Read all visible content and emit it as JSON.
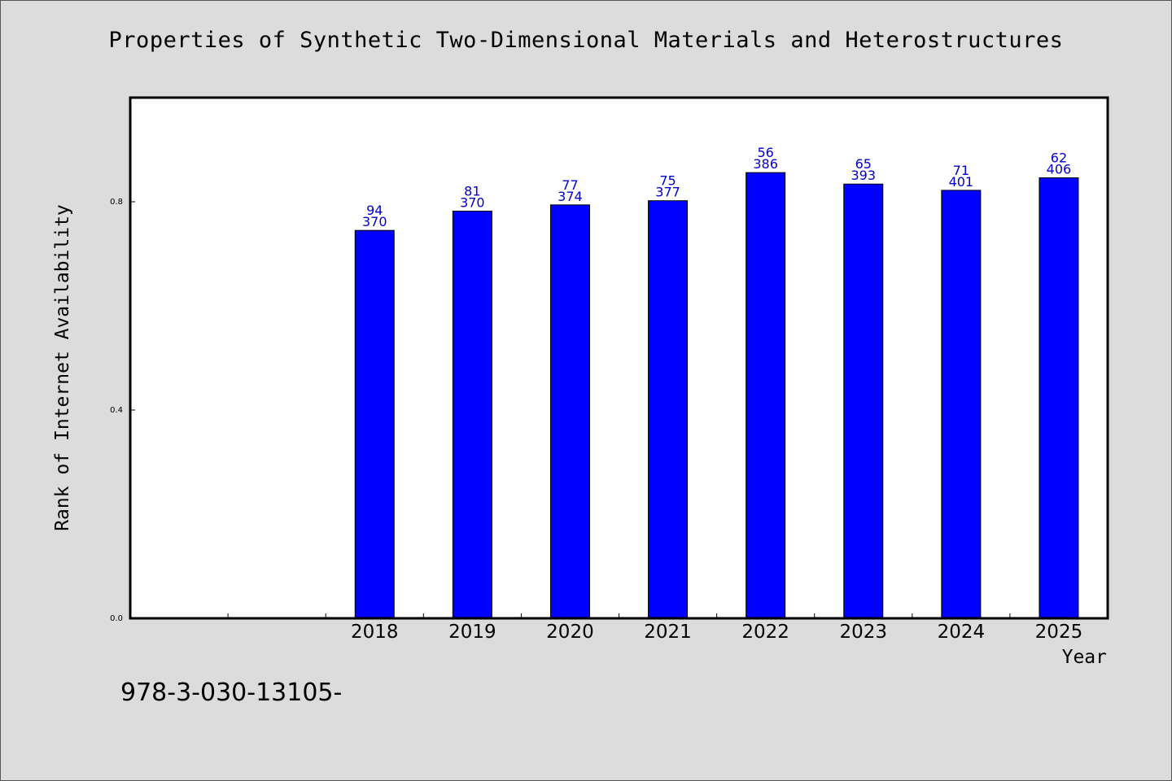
{
  "chart_data": {
    "type": "bar",
    "title": "Properties of Synthetic Two-Dimensional Materials and Heterostructures",
    "xlabel": "Year",
    "ylabel": "Rank of Internet Availability",
    "categories": [
      "",
      "",
      "2018",
      "2019",
      "2020",
      "2021",
      "2022",
      "2023",
      "2024",
      "2025"
    ],
    "values": [
      null,
      null,
      0.745,
      0.782,
      0.794,
      0.802,
      0.856,
      0.834,
      0.822,
      0.846
    ],
    "data_labels": [
      [],
      [],
      [
        "94",
        "370"
      ],
      [
        "81",
        "370"
      ],
      [
        "77",
        "374"
      ],
      [
        "75",
        "377"
      ],
      [
        "56",
        "386"
      ],
      [
        "65",
        "393"
      ],
      [
        "71",
        "401"
      ],
      [
        "62",
        "406"
      ]
    ],
    "yticks": [
      "0.0",
      "0.4",
      "0.8"
    ],
    "ytick_values": [
      0.0,
      0.4,
      0.8
    ],
    "ylim": [
      0,
      1.0
    ],
    "grid": false,
    "colors": {
      "bar": "#0000ff",
      "bar_edge": "#000000",
      "data_label": "#0000cc",
      "background": "#dcdcdc",
      "plot_bg": "#ffffff"
    }
  },
  "footnote": "978-3-030-13105-"
}
